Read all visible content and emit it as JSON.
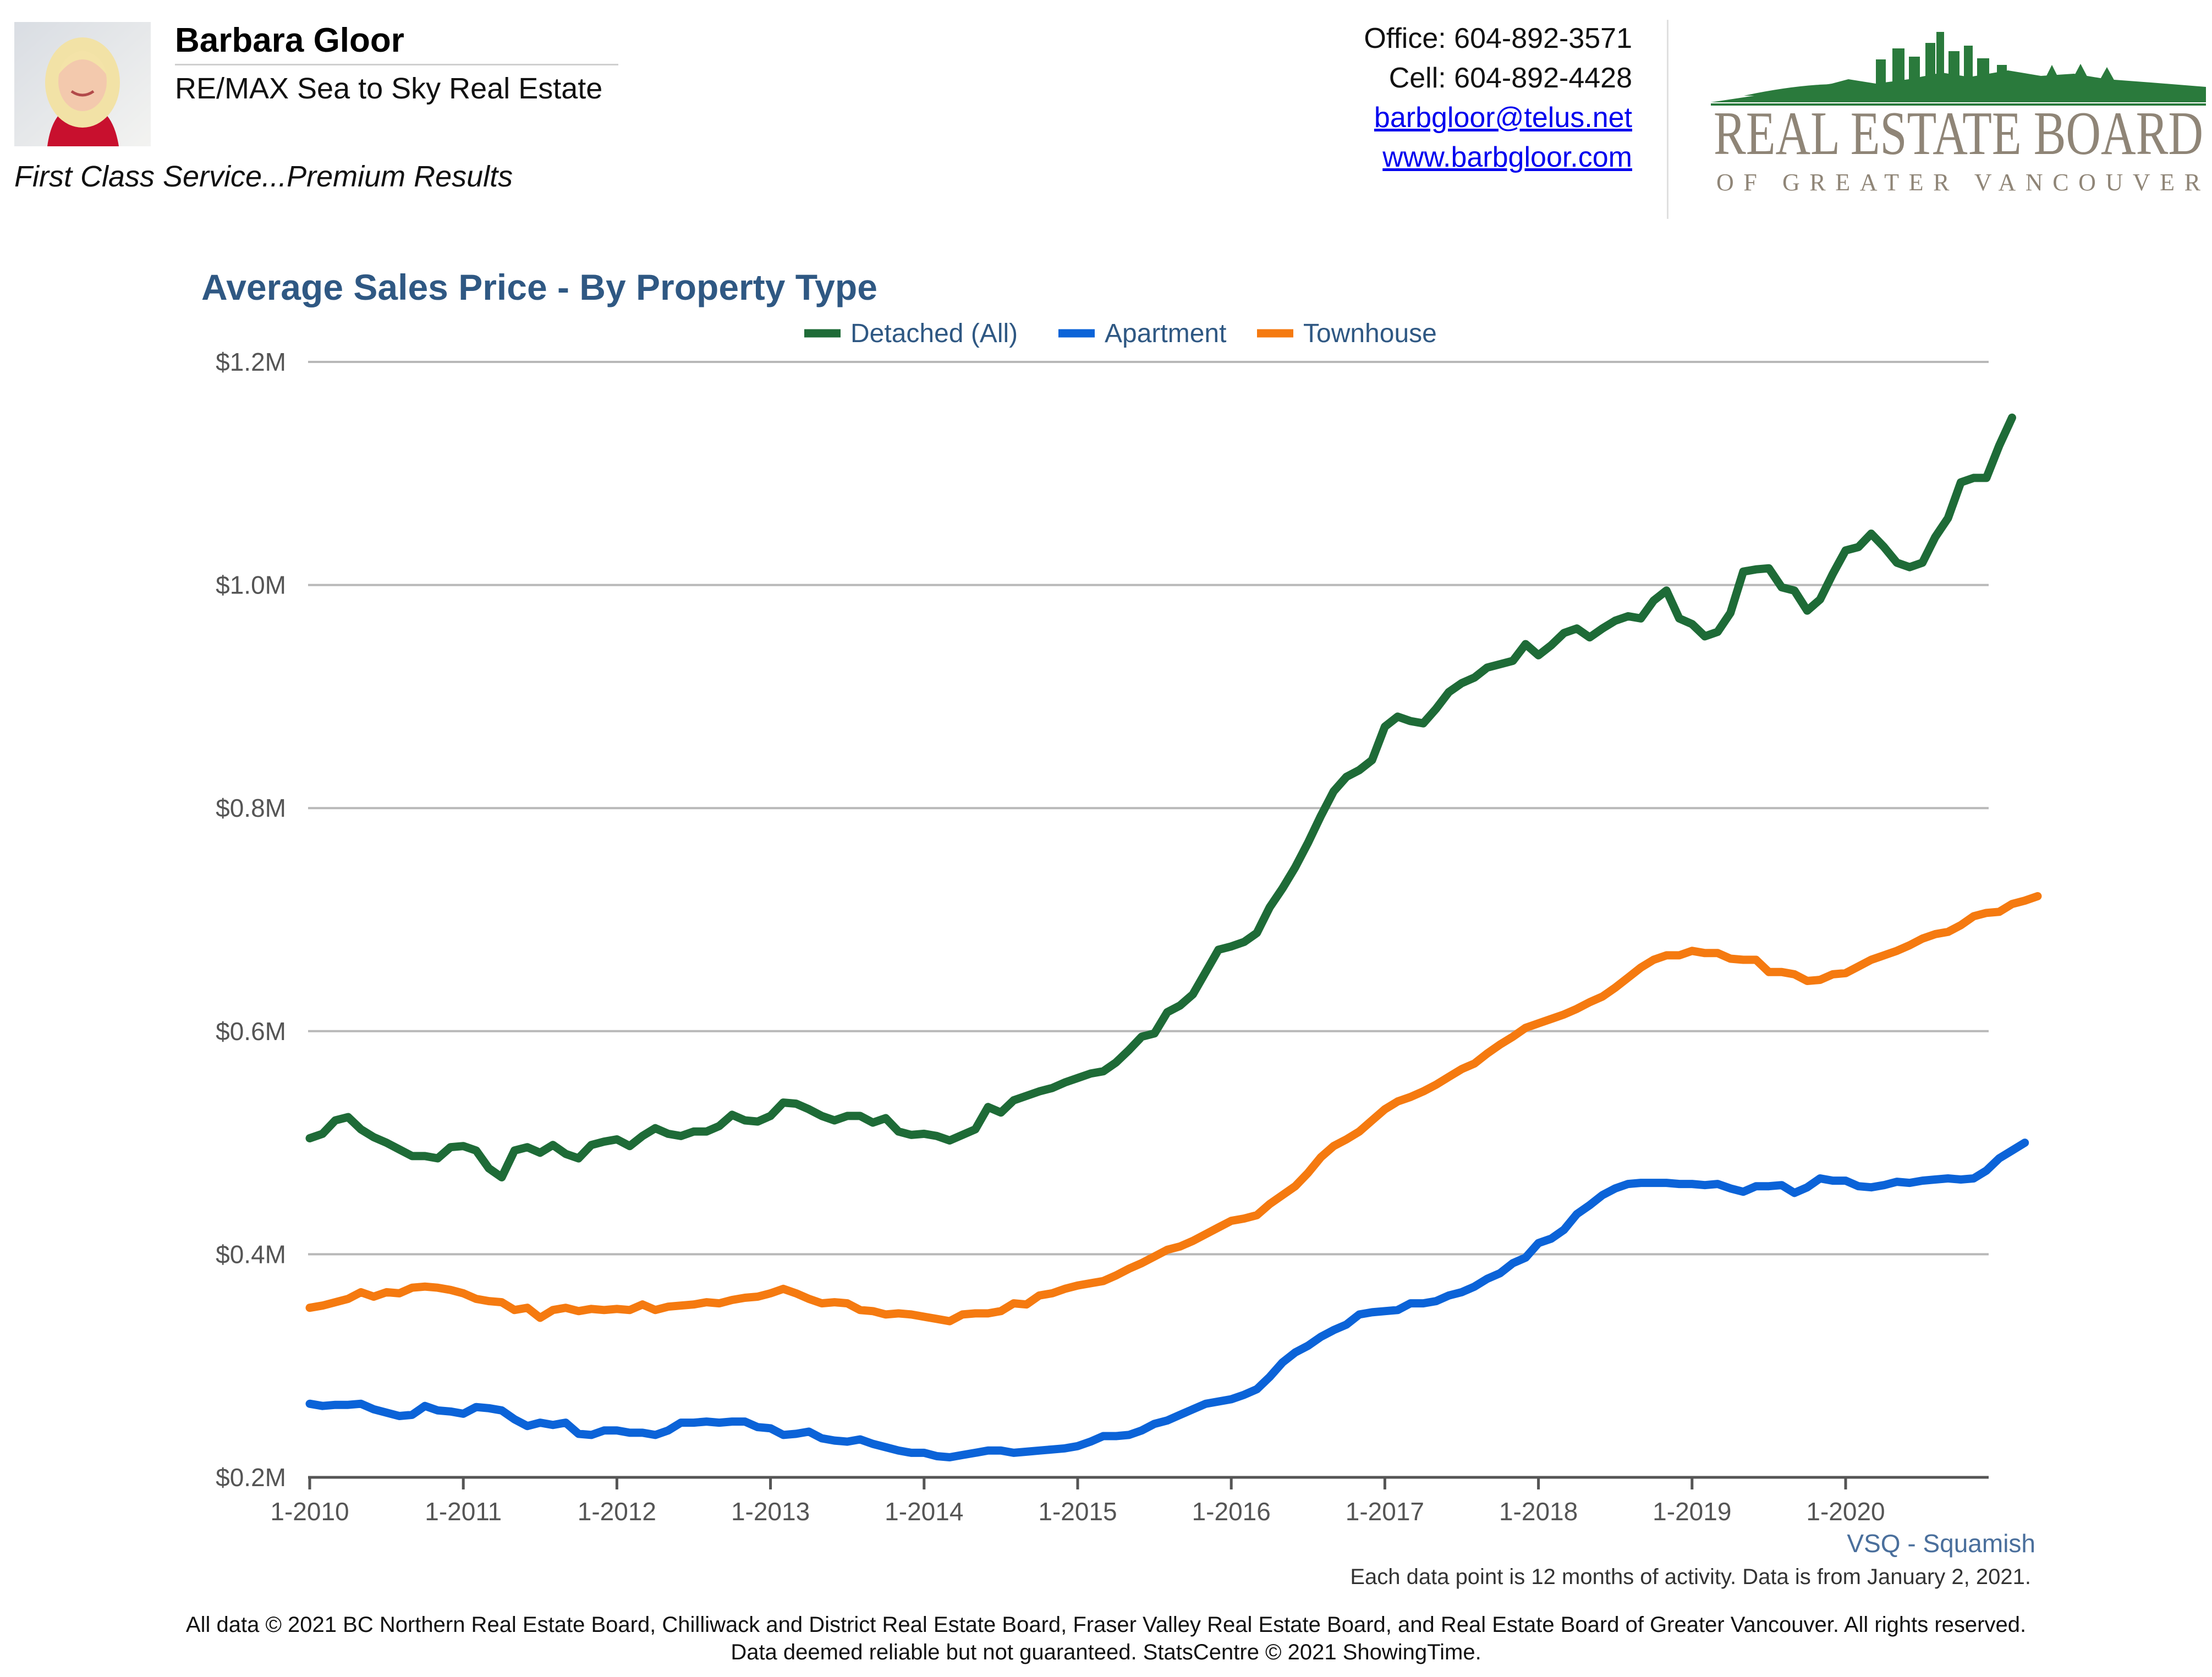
{
  "header": {
    "agent_name": "Barbara Gloor",
    "agent_company": "RE/MAX Sea to Sky Real Estate",
    "tagline": "First Class Service...Premium Results",
    "office": "Office: 604-892-3571",
    "cell": "Cell: 604-892-4428",
    "email": "barbgloor@telus.net",
    "website": "www.barbgloor.com",
    "logo_text_main": "REAL ESTATE BOARD",
    "logo_text_sub": "OF GREATER VANCOUVER"
  },
  "colors": {
    "detached": "#1e6b37",
    "apartment": "#0b63d8",
    "townhouse": "#f57a10",
    "title": "#2f5883",
    "logo_green": "#2a7a3c",
    "logo_gray": "#8f8577"
  },
  "chart_data": {
    "type": "line",
    "title": "Average Sales Price - By Property Type",
    "xlabel": "",
    "ylabel": "",
    "location_label": "VSQ - Squamish",
    "x_tick_labels": [
      "1-2010",
      "1-2011",
      "1-2012",
      "1-2013",
      "1-2014",
      "1-2015",
      "1-2016",
      "1-2017",
      "1-2018",
      "1-2019",
      "1-2020"
    ],
    "y_tick_labels": [
      "$0.2M",
      "$0.4M",
      "$0.6M",
      "$0.8M",
      "$1.0M",
      "$1.2M"
    ],
    "ylim": [
      0.2,
      1.2
    ],
    "y_unit": "millions CAD",
    "x_start": "2010-01",
    "grid": true,
    "legend_position": "top-center",
    "series": [
      {
        "name": "Detached (All)",
        "values": [
          0.504,
          0.508,
          0.52,
          0.523,
          0.512,
          0.505,
          0.5,
          0.494,
          0.488,
          0.488,
          0.486,
          0.496,
          0.497,
          0.493,
          0.477,
          0.469,
          0.493,
          0.496,
          0.491,
          0.498,
          0.49,
          0.486,
          0.498,
          0.501,
          0.503,
          0.497,
          0.506,
          0.513,
          0.508,
          0.506,
          0.51,
          0.51,
          0.515,
          0.525,
          0.52,
          0.519,
          0.524,
          0.536,
          0.535,
          0.53,
          0.524,
          0.52,
          0.524,
          0.524,
          0.518,
          0.522,
          0.51,
          0.507,
          0.508,
          0.506,
          0.502,
          0.507,
          0.512,
          0.532,
          0.527,
          0.538,
          0.542,
          0.546,
          0.549,
          0.554,
          0.558,
          0.562,
          0.564,
          0.572,
          0.583,
          0.595,
          0.598,
          0.617,
          0.623,
          0.633,
          0.653,
          0.673,
          0.676,
          0.68,
          0.688,
          0.711,
          0.728,
          0.747,
          0.769,
          0.793,
          0.815,
          0.828,
          0.834,
          0.843,
          0.873,
          0.882,
          0.878,
          0.876,
          0.889,
          0.904,
          0.912,
          0.917,
          0.926,
          0.929,
          0.932,
          0.947,
          0.937,
          0.946,
          0.957,
          0.961,
          0.953,
          0.961,
          0.968,
          0.972,
          0.97,
          0.986,
          0.995,
          0.97,
          0.965,
          0.954,
          0.958,
          0.975,
          1.012,
          1.014,
          1.015,
          0.998,
          0.995,
          0.977,
          0.987,
          1.01,
          1.031,
          1.034,
          1.046,
          1.034,
          1.02,
          1.016,
          1.02,
          1.043,
          1.06,
          1.092,
          1.096,
          1.096,
          1.125,
          1.15
        ]
      },
      {
        "name": "Apartment",
        "values": [
          0.266,
          0.264,
          0.265,
          0.265,
          0.266,
          0.261,
          0.258,
          0.255,
          0.256,
          0.264,
          0.26,
          0.259,
          0.257,
          0.263,
          0.262,
          0.26,
          0.252,
          0.246,
          0.249,
          0.247,
          0.249,
          0.239,
          0.238,
          0.242,
          0.242,
          0.24,
          0.24,
          0.238,
          0.242,
          0.249,
          0.249,
          0.25,
          0.249,
          0.25,
          0.25,
          0.245,
          0.244,
          0.238,
          0.239,
          0.241,
          0.235,
          0.233,
          0.232,
          0.234,
          0.23,
          0.227,
          0.224,
          0.222,
          0.222,
          0.219,
          0.218,
          0.22,
          0.222,
          0.224,
          0.224,
          0.222,
          0.223,
          0.224,
          0.225,
          0.226,
          0.228,
          0.232,
          0.237,
          0.237,
          0.238,
          0.242,
          0.248,
          0.251,
          0.256,
          0.261,
          0.266,
          0.268,
          0.27,
          0.274,
          0.279,
          0.29,
          0.303,
          0.312,
          0.318,
          0.326,
          0.332,
          0.337,
          0.346,
          0.348,
          0.349,
          0.35,
          0.356,
          0.356,
          0.358,
          0.363,
          0.366,
          0.371,
          0.378,
          0.383,
          0.392,
          0.397,
          0.41,
          0.414,
          0.422,
          0.436,
          0.444,
          0.453,
          0.459,
          0.463,
          0.464,
          0.464,
          0.464,
          0.463,
          0.463,
          0.462,
          0.463,
          0.459,
          0.456,
          0.461,
          0.461,
          0.462,
          0.455,
          0.46,
          0.468,
          0.466,
          0.466,
          0.461,
          0.46,
          0.462,
          0.465,
          0.464,
          0.466,
          0.467,
          0.468,
          0.467,
          0.468,
          0.475,
          0.486,
          0.493,
          0.5
        ]
      },
      {
        "name": "Townhouse",
        "values": [
          0.352,
          0.354,
          0.357,
          0.36,
          0.366,
          0.362,
          0.366,
          0.365,
          0.37,
          0.371,
          0.37,
          0.368,
          0.365,
          0.36,
          0.358,
          0.357,
          0.35,
          0.352,
          0.343,
          0.35,
          0.352,
          0.349,
          0.351,
          0.35,
          0.351,
          0.35,
          0.355,
          0.35,
          0.353,
          0.354,
          0.355,
          0.357,
          0.356,
          0.359,
          0.361,
          0.362,
          0.365,
          0.369,
          0.365,
          0.36,
          0.356,
          0.357,
          0.356,
          0.35,
          0.349,
          0.346,
          0.347,
          0.346,
          0.344,
          0.342,
          0.34,
          0.346,
          0.347,
          0.347,
          0.349,
          0.356,
          0.355,
          0.363,
          0.365,
          0.369,
          0.372,
          0.374,
          0.376,
          0.381,
          0.387,
          0.392,
          0.398,
          0.404,
          0.407,
          0.412,
          0.418,
          0.424,
          0.43,
          0.432,
          0.435,
          0.445,
          0.453,
          0.461,
          0.473,
          0.487,
          0.497,
          0.503,
          0.51,
          0.52,
          0.53,
          0.537,
          0.541,
          0.546,
          0.552,
          0.559,
          0.566,
          0.571,
          0.58,
          0.588,
          0.595,
          0.603,
          0.607,
          0.611,
          0.615,
          0.62,
          0.626,
          0.631,
          0.639,
          0.648,
          0.657,
          0.664,
          0.668,
          0.668,
          0.672,
          0.67,
          0.67,
          0.665,
          0.664,
          0.664,
          0.653,
          0.653,
          0.651,
          0.645,
          0.646,
          0.651,
          0.652,
          0.658,
          0.664,
          0.668,
          0.672,
          0.677,
          0.683,
          0.687,
          0.689,
          0.695,
          0.703,
          0.706,
          0.707,
          0.714,
          0.717,
          0.721
        ]
      }
    ]
  },
  "footer": {
    "note": "Each data point is 12 months of activity. Data is from January 2, 2021.",
    "copyright": "All data © 2021 BC Northern Real Estate Board, Chilliwack and District Real Estate Board, Fraser Valley Real Estate Board, and Real Estate Board of Greater Vancouver. All rights reserved.",
    "reliability": "Data deemed reliable but not guaranteed. StatsCentre © 2021 ShowingTime."
  }
}
